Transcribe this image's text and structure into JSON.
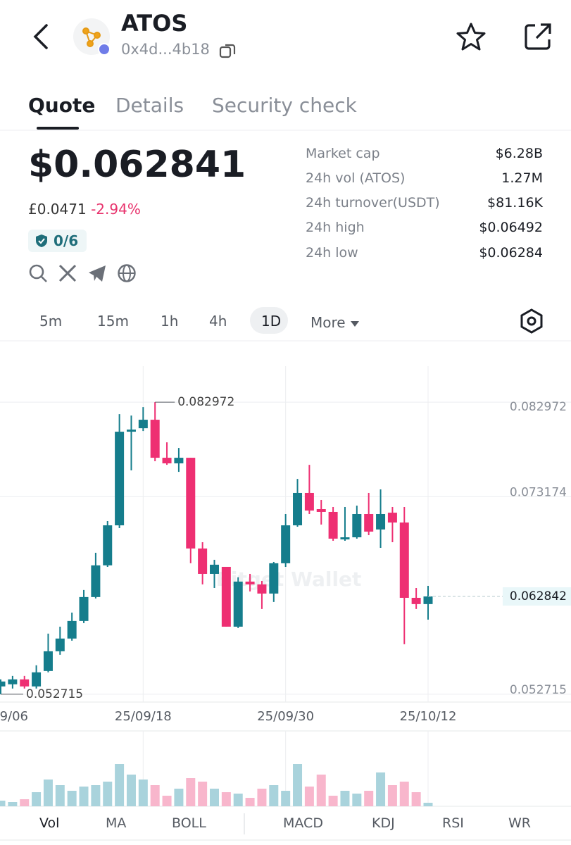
{
  "header": {
    "title": "ATOS",
    "address": "0x4d...4b18"
  },
  "tabs": [
    "Quote",
    "Details",
    "Security check"
  ],
  "price": {
    "main": "$0.062841",
    "fiat": "£0.0471",
    "change": "-2.94%",
    "security": "0/6"
  },
  "stats": [
    {
      "label": "Market cap",
      "value": "$6.28B"
    },
    {
      "label": "24h vol (ATOS)",
      "value": "1.27M"
    },
    {
      "label": "24h turnover(USDT)",
      "value": "$81.16K"
    },
    {
      "label": "24h high",
      "value": "$0.06492"
    },
    {
      "label": "24h low",
      "value": "$0.06284"
    }
  ],
  "timeframes": [
    "5m",
    "15m",
    "1h",
    "4h",
    "1D",
    "More"
  ],
  "chart_data": {
    "type": "candlestick",
    "watermark": "Bitget Wallet",
    "categories": [
      "9/06",
      null,
      null,
      null,
      null,
      null,
      null,
      null,
      null,
      null,
      null,
      null,
      "25/09/18",
      null,
      null,
      null,
      null,
      null,
      null,
      null,
      null,
      null,
      null,
      null,
      "25/09/30",
      null,
      null,
      null,
      null,
      null,
      null,
      null,
      null,
      null,
      null,
      null,
      "25/10/12"
    ],
    "open": [
      0.05352,
      0.05374,
      0.05425,
      0.05352,
      0.05512,
      0.05716,
      0.05848,
      0.0603,
      0.06278,
      0.06606,
      0.07021,
      0.07991,
      0.08027,
      0.08115,
      0.07721,
      0.07663,
      0.07721,
      0.06781,
      0.06518,
      0.06591,
      0.05971,
      0.06438,
      0.06409,
      0.06314,
      0.06628,
      0.07021,
      0.07357,
      0.07189,
      0.0716,
      0.06875,
      0.06897,
      0.07138,
      0.06978,
      0.07152,
      0.0705,
      0.0627,
      0.06205
    ],
    "high": [
      0.05425,
      0.05461,
      0.05461,
      0.05571,
      0.05899,
      0.05971,
      0.06117,
      0.06351,
      0.06737,
      0.07065,
      0.08173,
      0.08158,
      0.08246,
      0.082972,
      0.07881,
      0.07823,
      0.07721,
      0.06846,
      0.06664,
      0.06591,
      0.06482,
      0.06518,
      0.06445,
      0.06642,
      0.07138,
      0.07502,
      0.07648,
      0.07284,
      0.07211,
      0.07211,
      0.07225,
      0.07357,
      0.07393,
      0.07211,
      0.07211,
      0.06372,
      0.06394
    ],
    "low": [
      0.052715,
      0.0533,
      0.0533,
      0.0533,
      0.05498,
      0.0568,
      0.05826,
      0.06008,
      0.06263,
      0.06591,
      0.06992,
      0.0759,
      0.07998,
      0.07685,
      0.07648,
      0.07575,
      0.06628,
      0.06409,
      0.06372,
      0.05971,
      0.05957,
      0.06336,
      0.06154,
      0.06227,
      0.06591,
      0.07007,
      0.07138,
      0.07029,
      0.06861,
      0.06861,
      0.06883,
      0.06919,
      0.06788,
      0.06846,
      0.05789,
      0.06154,
      0.06044
    ],
    "close": [
      0.05403,
      0.05425,
      0.05352,
      0.05498,
      0.05716,
      0.05848,
      0.0603,
      0.06278,
      0.06606,
      0.07021,
      0.07991,
      0.08013,
      0.08115,
      0.07721,
      0.07663,
      0.07721,
      0.06781,
      0.06518,
      0.06613,
      0.05971,
      0.06438,
      0.06409,
      0.06314,
      0.06628,
      0.07021,
      0.07357,
      0.07174,
      0.0716,
      0.06883,
      0.06897,
      0.07138,
      0.06956,
      0.07138,
      0.0705,
      0.0627,
      0.06205,
      0.062842
    ],
    "volume": [
      8,
      6,
      10,
      20,
      38,
      30,
      22,
      28,
      30,
      35,
      60,
      45,
      38,
      30,
      15,
      25,
      40,
      35,
      25,
      20,
      18,
      12,
      25,
      30,
      22,
      60,
      28,
      45,
      15,
      22,
      18,
      22,
      48,
      30,
      35,
      20,
      5
    ],
    "ylim": [
      0.0519,
      0.0867
    ],
    "yticks": [
      0.082972,
      0.073174,
      0.052715
    ],
    "last_price": 0.062842,
    "high_marker": 0.082972,
    "low_marker": 0.052715,
    "up_color": "#157d8c",
    "down_color": "#ee2f72",
    "up_volume_color": "#a9d3dc",
    "down_volume_color": "#f8b6cc",
    "grid": true
  },
  "indicators": [
    "Vol",
    "MA",
    "BOLL",
    "MACD",
    "KDJ",
    "RSI",
    "WR"
  ]
}
